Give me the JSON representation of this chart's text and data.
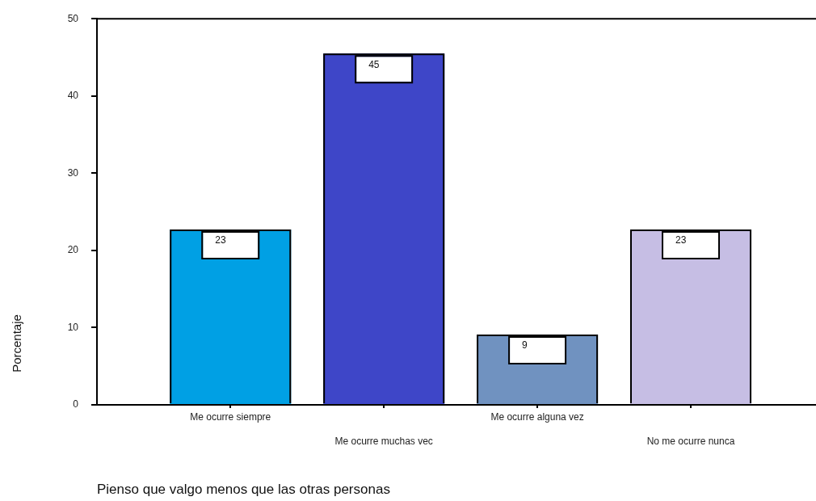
{
  "chart_data": {
    "type": "bar",
    "xlabel": "Pienso que valgo menos que las otras personas",
    "ylabel": "Porcentaje",
    "categories": [
      "Me ocurre siempre",
      "Me ocurre muchas vec",
      "Me ocurre alguna vez",
      "No me ocurre nunca"
    ],
    "values": [
      22.7,
      45.5,
      9.1,
      22.7
    ],
    "value_labels": [
      "23",
      "45",
      "9",
      "23"
    ],
    "colors": [
      "#00a0e4",
      "#3e46c8",
      "#7092c0",
      "#c6bee4"
    ],
    "ylim": [
      0,
      50
    ],
    "yticks": [
      0,
      10,
      20,
      30,
      40,
      50
    ]
  }
}
